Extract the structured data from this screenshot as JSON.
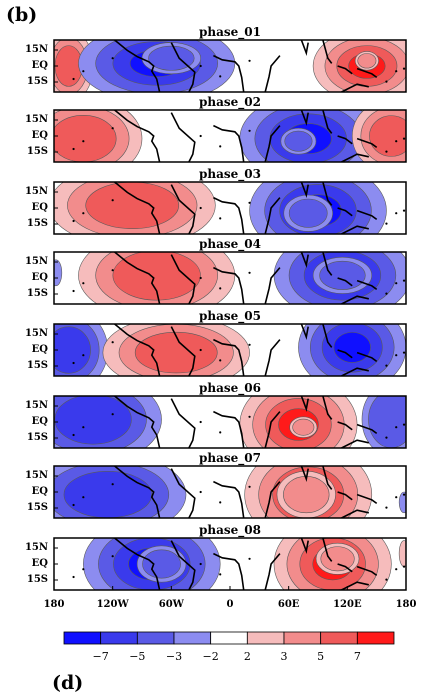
{
  "figure_label": "(b)",
  "next_figure_label": "(d)",
  "chart_data": {
    "type": "heatmap",
    "panels": [
      {
        "title": "phase_01"
      },
      {
        "title": "phase_02"
      },
      {
        "title": "phase_03"
      },
      {
        "title": "phase_04"
      },
      {
        "title": "phase_05"
      },
      {
        "title": "phase_06"
      },
      {
        "title": "phase_07"
      },
      {
        "title": "phase_08"
      }
    ],
    "y_ticks": [
      "15N",
      "EQ",
      "15S"
    ],
    "x_ticks": [
      "180",
      "120W",
      "60W",
      "0",
      "60E",
      "120E",
      "180"
    ],
    "xlim": [
      -180,
      180
    ],
    "colorbar": {
      "levels": [
        "-7",
        "-5",
        "-3",
        "-2",
        "2",
        "3",
        "5",
        "7"
      ],
      "colors": [
        "#1010ff",
        "#3a3aec",
        "#5a5ae6",
        "#8c8cf0",
        "#ffffff",
        "#f6bcbc",
        "#f28c8c",
        "#ef5a5a",
        "#ff1a1a"
      ]
    }
  }
}
